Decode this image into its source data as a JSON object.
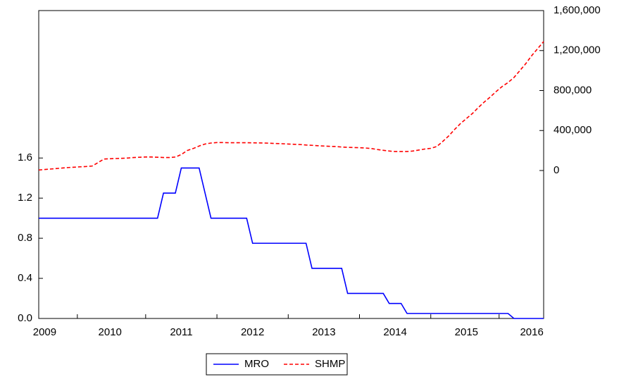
{
  "chart_data": {
    "type": "line",
    "categories": [
      null,
      "2009",
      null,
      null,
      null,
      null,
      null,
      null,
      null,
      null,
      null,
      null,
      "2010",
      null,
      null,
      null,
      null,
      null,
      null,
      null,
      null,
      null,
      null,
      null,
      "2011",
      null,
      null,
      null,
      null,
      null,
      null,
      null,
      null,
      null,
      null,
      null,
      "2012",
      null,
      null,
      null,
      null,
      null,
      null,
      null,
      null,
      null,
      null,
      null,
      "2013",
      null,
      null,
      null,
      null,
      null,
      null,
      null,
      null,
      null,
      null,
      null,
      "2014",
      null,
      null,
      null,
      null,
      null,
      null,
      null,
      null,
      null,
      null,
      null,
      "2015",
      null,
      null,
      null,
      null,
      null,
      null,
      null,
      null,
      null,
      null,
      "2016",
      null,
      null
    ],
    "series": [
      {
        "name": "MRO",
        "color": "#0000ff",
        "style": "solid",
        "values": [
          1,
          1,
          1,
          1,
          1,
          1,
          1,
          1,
          1,
          1,
          1,
          1,
          1,
          1,
          1,
          1,
          1,
          1,
          1,
          1,
          1,
          1.25,
          1.25,
          1.25,
          1.5,
          1.5,
          1.5,
          1.5,
          1.25,
          1,
          1,
          1,
          1,
          1,
          1,
          1,
          0.75,
          0.75,
          0.75,
          0.75,
          0.75,
          0.75,
          0.75,
          0.75,
          0.75,
          0.75,
          0.5,
          0.5,
          0.5,
          0.5,
          0.5,
          0.5,
          0.25,
          0.25,
          0.25,
          0.25,
          0.25,
          0.25,
          0.25,
          0.15,
          0.15,
          0.15,
          0.05,
          0.05,
          0.05,
          0.05,
          0.05,
          0.05,
          0.05,
          0.05,
          0.05,
          0.05,
          0.05,
          0.05,
          0.05,
          0.05,
          0.05,
          0.05,
          0.05,
          0.05,
          0,
          0,
          0,
          0,
          0,
          0
        ]
      },
      {
        "name": "SHMP",
        "color": "#ff0000",
        "style": "dashed",
        "axis": "y2",
        "values": [
          5000,
          10000,
          15000,
          20000,
          25000,
          30000,
          33000,
          37000,
          40000,
          45000,
          80000,
          115000,
          118000,
          120000,
          122000,
          125000,
          130000,
          133000,
          135000,
          135000,
          133000,
          130000,
          130000,
          135000,
          160000,
          200000,
          220000,
          245000,
          265000,
          275000,
          280000,
          280000,
          278000,
          278000,
          278000,
          278000,
          277000,
          276000,
          275000,
          273000,
          270000,
          268000,
          265000,
          262000,
          260000,
          255000,
          252000,
          248000,
          245000,
          242000,
          240000,
          235000,
          232000,
          230000,
          228000,
          225000,
          220000,
          210000,
          202000,
          195000,
          190000,
          190000,
          190000,
          195000,
          205000,
          215000,
          222000,
          240000,
          290000,
          345000,
          410000,
          470000,
          520000,
          570000,
          630000,
          685000,
          735000,
          790000,
          840000,
          880000,
          930000,
          1000000,
          1070000,
          1150000,
          1220000,
          1290000
        ]
      }
    ],
    "ylim": [
      0,
      3.07
    ],
    "yticks": [
      {
        "value": 0,
        "label": "0.0"
      },
      0.4,
      0.8,
      1.2,
      1.6
    ],
    "y2lim": [
      -1480000,
      1600000
    ],
    "y2ticks": [
      0,
      {
        "value": 400000,
        "label": "400,000"
      },
      {
        "value": 800000,
        "label": "800,000"
      },
      {
        "value": 1200000,
        "label": "1,200,000"
      },
      {
        "value": 1600000,
        "label": "1,600,000"
      }
    ],
    "legend": "bottom"
  }
}
